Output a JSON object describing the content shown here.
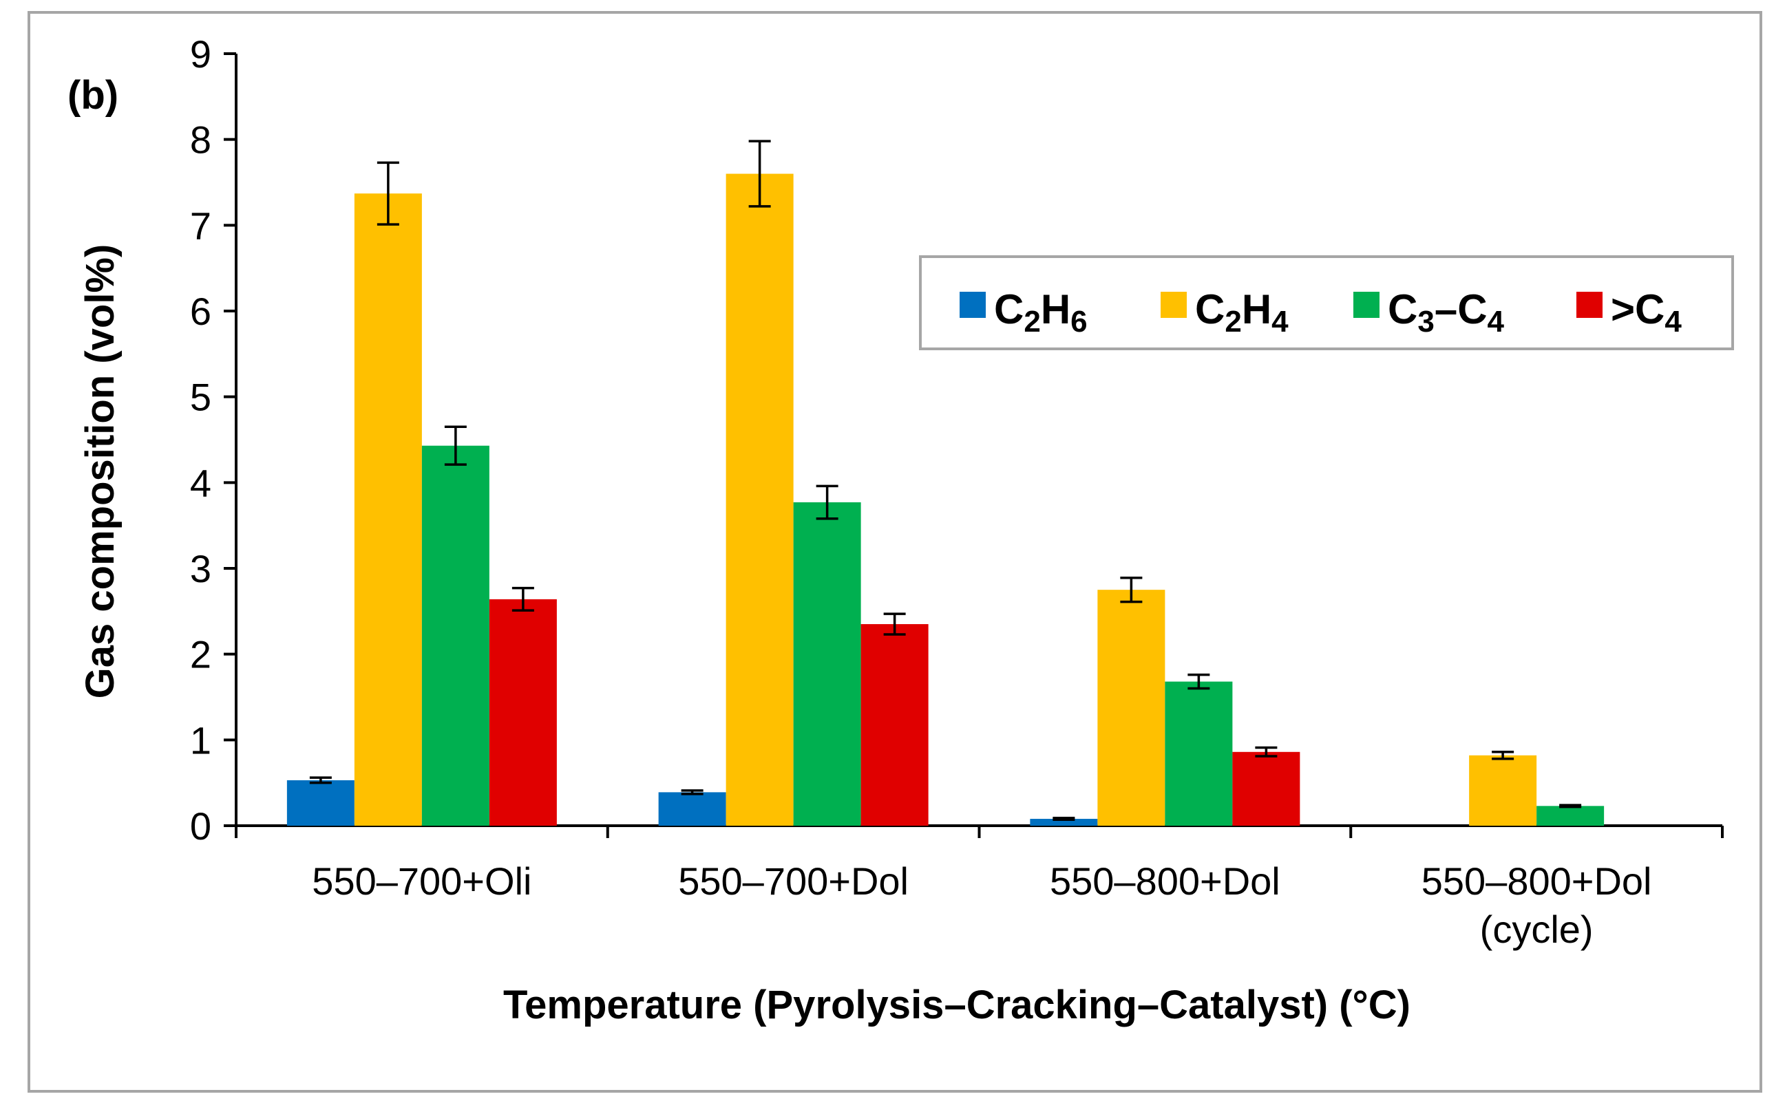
{
  "chart_data": {
    "type": "bar",
    "panel_label": "(b)",
    "xlabel": "Temperature (Pyrolysis–Cracking–Catalyst) (°C)",
    "ylabel": "Gas composition (vol%)",
    "ylim": [
      0,
      9
    ],
    "yticks": [
      "0",
      "1",
      "2",
      "3",
      "4",
      "5",
      "6",
      "7",
      "8",
      "9"
    ],
    "categories": [
      {
        "line1": "550–700+Oli",
        "line2": ""
      },
      {
        "line1": "550–700+Dol",
        "line2": ""
      },
      {
        "line1": "550–800+Dol",
        "line2": ""
      },
      {
        "line1": "550–800+Dol",
        "line2": "(cycle)"
      }
    ],
    "legend_position": "top-right",
    "series": [
      {
        "name": "C2H6",
        "label_main": "C",
        "sub1": "2",
        "mid": "H",
        "sub2": "6",
        "color": "#0070C0",
        "values": [
          0.53,
          0.39,
          0.08,
          0
        ],
        "errors": [
          0.03,
          0.02,
          0.01,
          0
        ]
      },
      {
        "name": "C2H4",
        "label_main": "C",
        "sub1": "2",
        "mid": "H",
        "sub2": "4",
        "color": "#FFC000",
        "values": [
          7.37,
          7.6,
          2.75,
          0.82
        ],
        "errors": [
          0.36,
          0.38,
          0.14,
          0.04
        ]
      },
      {
        "name": "C3–C4",
        "label_main": "C",
        "sub1": "3",
        "mid": "–C",
        "sub2": "4",
        "color": "#00B050",
        "values": [
          4.43,
          3.77,
          1.68,
          0.23
        ],
        "errors": [
          0.22,
          0.19,
          0.08,
          0.01
        ]
      },
      {
        "name": ">C4",
        "label_main": ">C",
        "sub1": "4",
        "mid": "",
        "sub2": "",
        "color": "#E00000",
        "values": [
          2.64,
          2.35,
          0.86,
          0
        ],
        "errors": [
          0.13,
          0.12,
          0.05,
          0
        ]
      }
    ]
  }
}
